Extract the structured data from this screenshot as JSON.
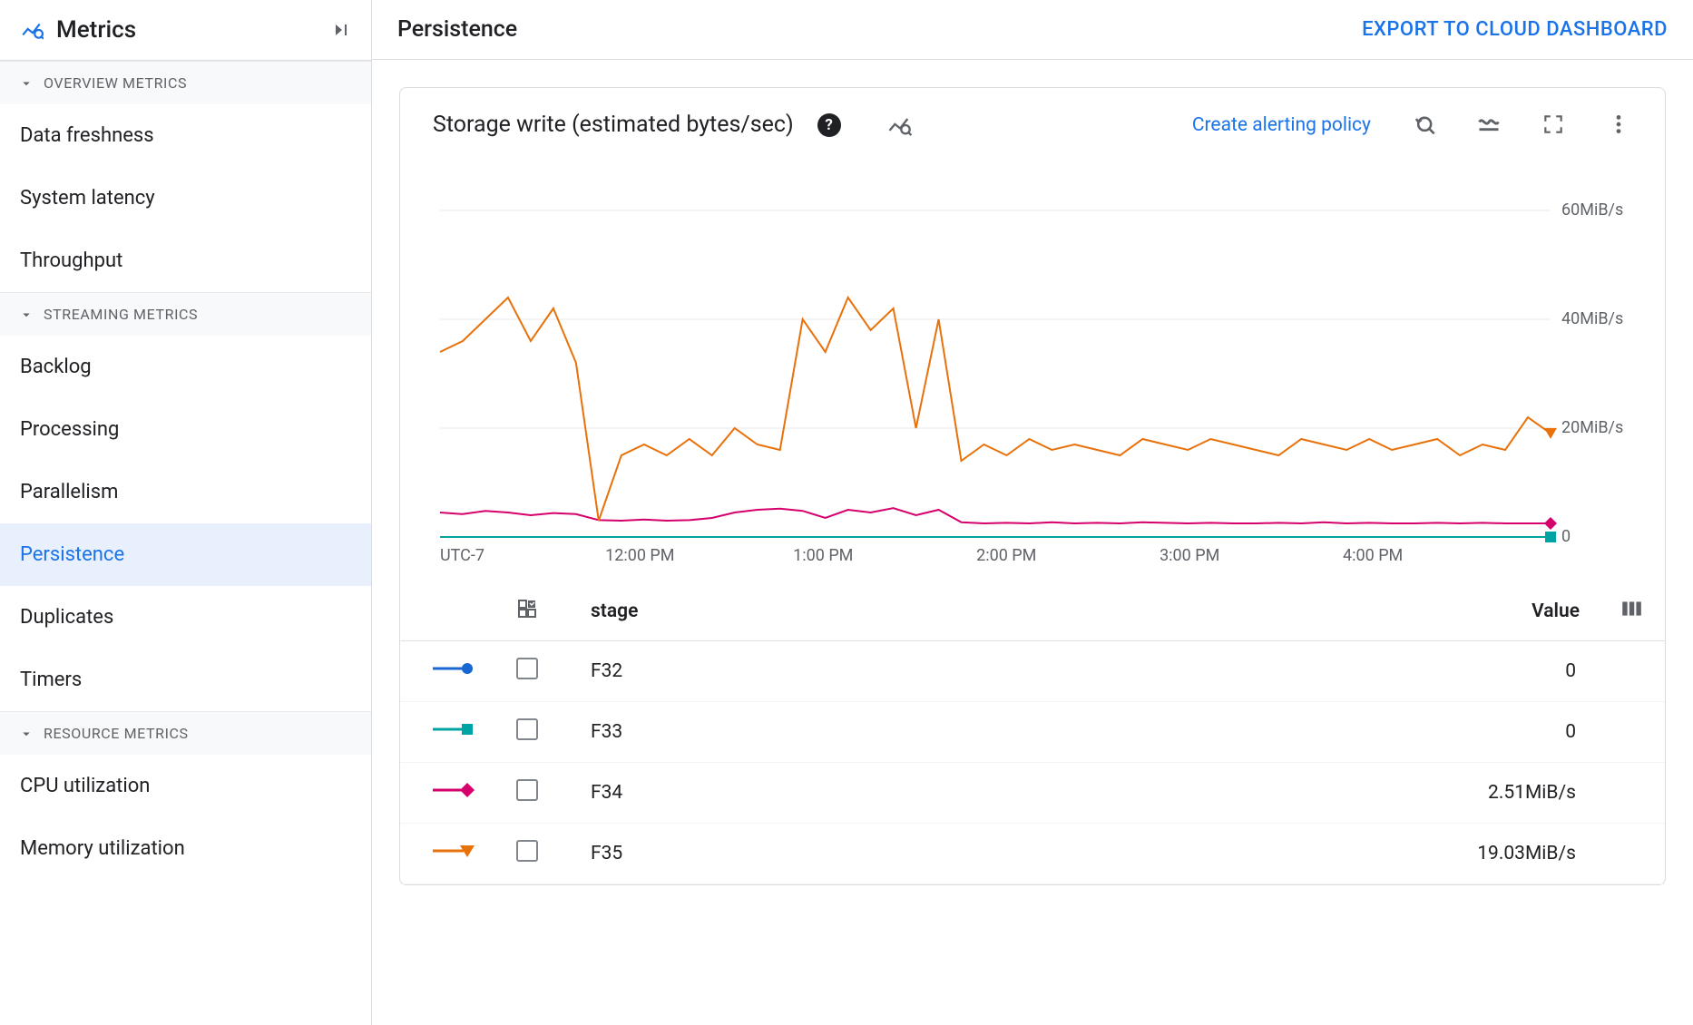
{
  "sidebar": {
    "title": "Metrics",
    "groups": [
      {
        "label": "OVERVIEW METRICS",
        "items": [
          {
            "label": "Data freshness",
            "active": false
          },
          {
            "label": "System latency",
            "active": false
          },
          {
            "label": "Throughput",
            "active": false
          }
        ]
      },
      {
        "label": "STREAMING METRICS",
        "items": [
          {
            "label": "Backlog",
            "active": false
          },
          {
            "label": "Processing",
            "active": false
          },
          {
            "label": "Parallelism",
            "active": false
          },
          {
            "label": "Persistence",
            "active": true
          },
          {
            "label": "Duplicates",
            "active": false
          },
          {
            "label": "Timers",
            "active": false
          }
        ]
      },
      {
        "label": "RESOURCE METRICS",
        "items": [
          {
            "label": "CPU utilization",
            "active": false
          },
          {
            "label": "Memory utilization",
            "active": false
          }
        ]
      }
    ]
  },
  "header": {
    "page_title": "Persistence",
    "export_label": "EXPORT TO CLOUD DASHBOARD"
  },
  "card": {
    "title": "Storage write (estimated bytes/sec)",
    "alert_link": "Create alerting policy"
  },
  "chart": {
    "type": "line",
    "ylabel_unit": "MiB/s",
    "ylim": [
      0,
      65
    ],
    "yticks": [
      0,
      20,
      40,
      60
    ],
    "ytick_labels": [
      "0",
      "20MiB/s",
      "40MiB/s",
      "60MiB/s"
    ],
    "x_axis_label": "UTC-7",
    "xtick_positions": [
      0.18,
      0.345,
      0.51,
      0.675,
      0.84
    ],
    "xtick_labels": [
      "12:00 PM",
      "1:00 PM",
      "2:00 PM",
      "3:00 PM",
      "4:00 PM"
    ],
    "grid_color": "#e8eaed",
    "background_color": "#ffffff",
    "line_width": 2,
    "series": [
      {
        "name": "F32",
        "color": "#1967d2",
        "marker": "circle",
        "data": [
          0,
          0,
          0,
          0,
          0,
          0,
          0,
          0,
          0,
          0,
          0,
          0,
          0,
          0,
          0,
          0,
          0,
          0,
          0,
          0,
          0,
          0,
          0,
          0,
          0,
          0,
          0,
          0,
          0,
          0,
          0,
          0,
          0,
          0,
          0,
          0,
          0,
          0,
          0,
          0,
          0,
          0,
          0,
          0,
          0,
          0,
          0,
          0,
          0,
          0
        ]
      },
      {
        "name": "F33",
        "color": "#00a3a3",
        "marker": "square",
        "data": [
          0,
          0,
          0,
          0,
          0,
          0,
          0,
          0,
          0,
          0,
          0,
          0,
          0,
          0,
          0,
          0,
          0,
          0,
          0,
          0,
          0,
          0,
          0,
          0,
          0,
          0,
          0,
          0,
          0,
          0,
          0,
          0,
          0,
          0,
          0,
          0,
          0,
          0,
          0,
          0,
          0,
          0,
          0,
          0,
          0,
          0,
          0,
          0,
          0,
          0
        ]
      },
      {
        "name": "F34",
        "color": "#d6006c",
        "marker": "diamond",
        "data": [
          4.5,
          4.2,
          4.8,
          4.5,
          4.0,
          4.4,
          4.2,
          3.1,
          3.0,
          3.2,
          3.0,
          3.1,
          3.5,
          4.5,
          5.0,
          5.2,
          4.8,
          3.5,
          5.0,
          4.5,
          5.3,
          4.0,
          5.0,
          2.7,
          2.5,
          2.6,
          2.5,
          2.7,
          2.5,
          2.6,
          2.5,
          2.7,
          2.6,
          2.5,
          2.6,
          2.5,
          2.5,
          2.6,
          2.5,
          2.7,
          2.5,
          2.6,
          2.5,
          2.5,
          2.6,
          2.5,
          2.6,
          2.5,
          2.5,
          2.51
        ]
      },
      {
        "name": "F35",
        "color": "#e8710a",
        "marker": "triangle",
        "data": [
          34,
          36,
          40,
          44,
          36,
          42,
          32,
          3,
          15,
          17,
          15,
          18,
          15,
          20,
          17,
          16,
          40,
          34,
          44,
          38,
          42,
          20,
          40,
          14,
          17,
          15,
          18,
          16,
          17,
          16,
          15,
          18,
          17,
          16,
          18,
          17,
          16,
          15,
          18,
          17,
          16,
          18,
          16,
          17,
          18,
          15,
          17,
          16,
          22,
          19.03
        ]
      }
    ]
  },
  "legend": {
    "stage_header": "stage",
    "value_header": "Value",
    "rows": [
      {
        "stage": "F32",
        "value": "0",
        "color": "#1967d2",
        "marker": "circle"
      },
      {
        "stage": "F33",
        "value": "0",
        "color": "#00a3a3",
        "marker": "square"
      },
      {
        "stage": "F34",
        "value": "2.51MiB/s",
        "color": "#d6006c",
        "marker": "diamond"
      },
      {
        "stage": "F35",
        "value": "19.03MiB/s",
        "color": "#e8710a",
        "marker": "triangle"
      }
    ]
  }
}
